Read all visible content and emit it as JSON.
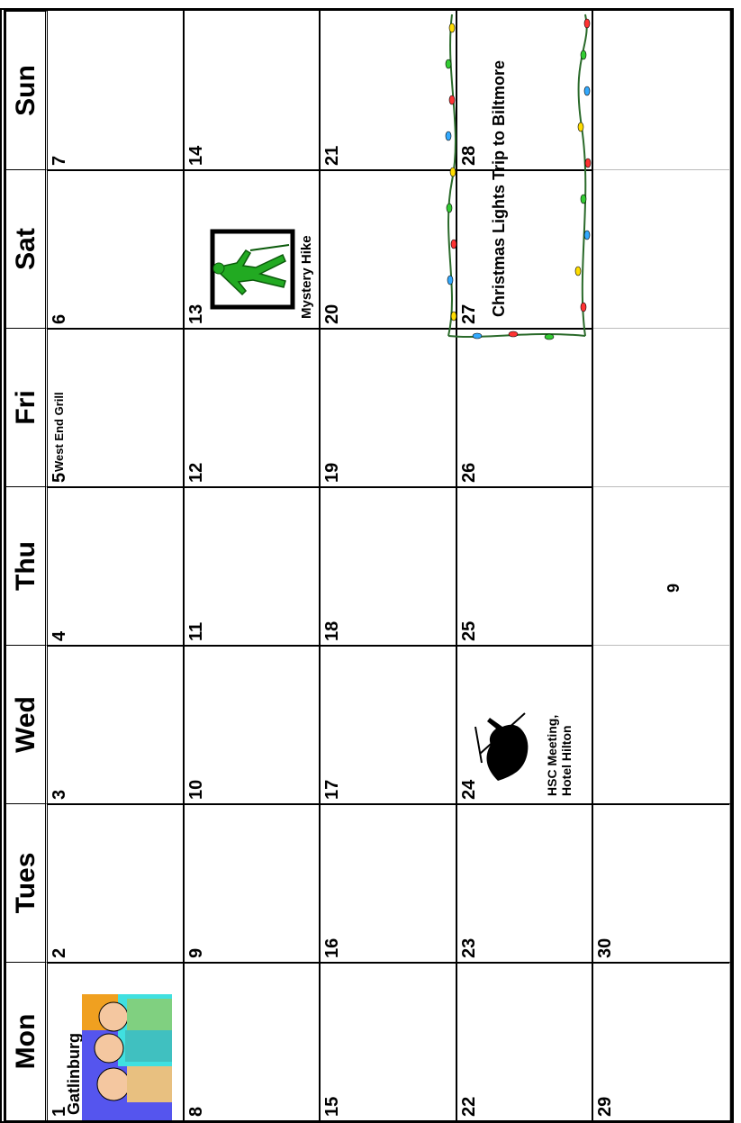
{
  "weekdays": [
    "Mon",
    "Tues",
    "Wed",
    "Thu",
    "Fri",
    "Sat",
    "Sun"
  ],
  "weeks": [
    [
      "1",
      "2",
      "3",
      "4",
      "5",
      "6",
      "7"
    ],
    [
      "8",
      "9",
      "10",
      "11",
      "12",
      "13",
      "14"
    ],
    [
      "15",
      "16",
      "17",
      "18",
      "19",
      "20",
      "21"
    ],
    [
      "22",
      "23",
      "24",
      "25",
      "26",
      "27",
      "28"
    ],
    [
      "29",
      "30",
      "",
      "",
      "",
      "",
      ""
    ]
  ],
  "events": {
    "gatlinburg": "Gatlinburg",
    "west_end_grill": "West End Grill",
    "mystery_hike": "Mystery Hike",
    "hsc_meeting_line1": "HSC Meeting,",
    "hsc_meeting_line2": "Hotel Hilton",
    "christmas_lights": "Christmas Lights Trip to Biltmore",
    "stray_number": "9"
  },
  "icons": [
    "family-clipart-icon",
    "hiker-clipart-icon",
    "skier-clipart-icon",
    "christmas-lights-icon"
  ],
  "colors": {
    "line": "#000000",
    "hiker_green": "#22aa22",
    "family_blue": "#4444ee",
    "family_orange": "#f0a020"
  }
}
